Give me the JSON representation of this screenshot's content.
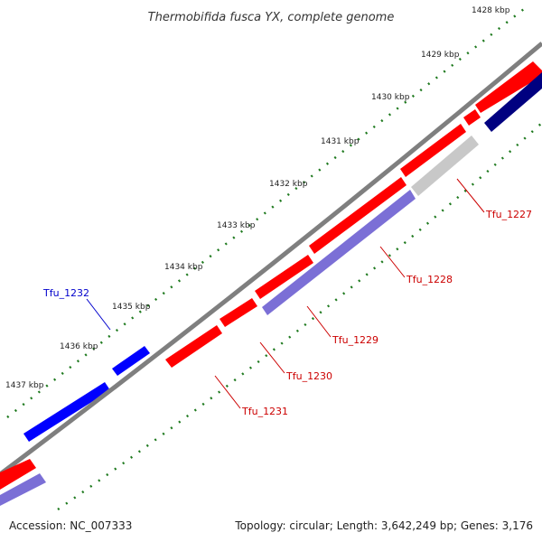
{
  "title": "Thermobifida fusca YX, complete genome",
  "accession": "Accession: NC_007333",
  "summary": "Topology: circular; Length: 3,642,249 bp; Genes: 3,176",
  "colors": {
    "backbone": "#808080",
    "tick": "#1f7a1f",
    "forward_gene": "#ff0000",
    "reverse_gene": "#0000ff",
    "cds_light": "#7b6fd6",
    "cds_dark": "#000080",
    "cds_grey": "#c8c8c8",
    "label_red": "#cc0000",
    "label_blue": "#0000cc"
  },
  "kbp_labels": [
    "1428 kbp",
    "1429 kbp",
    "1430 kbp",
    "1431 kbp",
    "1432 kbp",
    "1433 kbp",
    "1434 kbp",
    "1435 kbp",
    "1436 kbp",
    "1437 kbp"
  ],
  "gene_labels": [
    "Tfu_1227",
    "Tfu_1228",
    "Tfu_1229",
    "Tfu_1230",
    "Tfu_1231",
    "Tfu_1232"
  ]
}
